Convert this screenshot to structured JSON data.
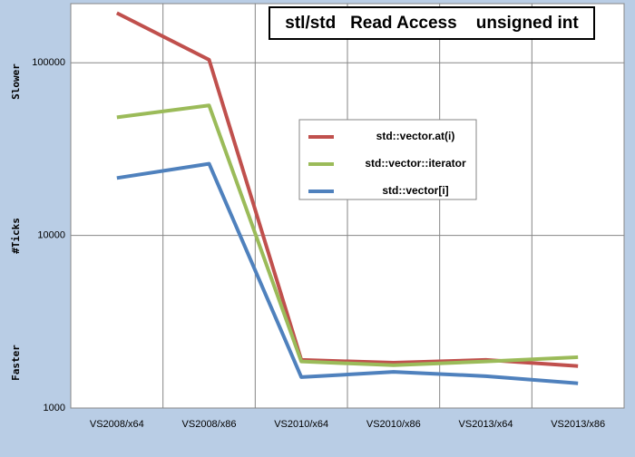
{
  "chart_data": {
    "type": "line",
    "title": "stl/std   Read Access    unsigned int",
    "y_axis_labels": [
      "Slower",
      "#Ticks",
      "Faster"
    ],
    "categories": [
      "VS2008/x64",
      "VS2008/x86",
      "VS2010/x64",
      "VS2010/x86",
      "VS2013/x64",
      "VS2013/x86"
    ],
    "series": [
      {
        "name": "std::vector.at(i)",
        "color": "#c0504d",
        "values": [
          194000,
          104000,
          1900,
          1830,
          1900,
          1750
        ]
      },
      {
        "name": "std::vector::iterator",
        "color": "#9bbb59",
        "values": [
          48300,
          56600,
          1860,
          1770,
          1860,
          1970
        ]
      },
      {
        "name": "std::vector[i]",
        "color": "#4f81bd",
        "values": [
          21500,
          26000,
          1510,
          1620,
          1530,
          1390
        ]
      }
    ],
    "ylim": [
      1000,
      220000
    ],
    "yticks": [
      1000,
      10000,
      100000
    ],
    "log_y": true,
    "grid": true
  }
}
